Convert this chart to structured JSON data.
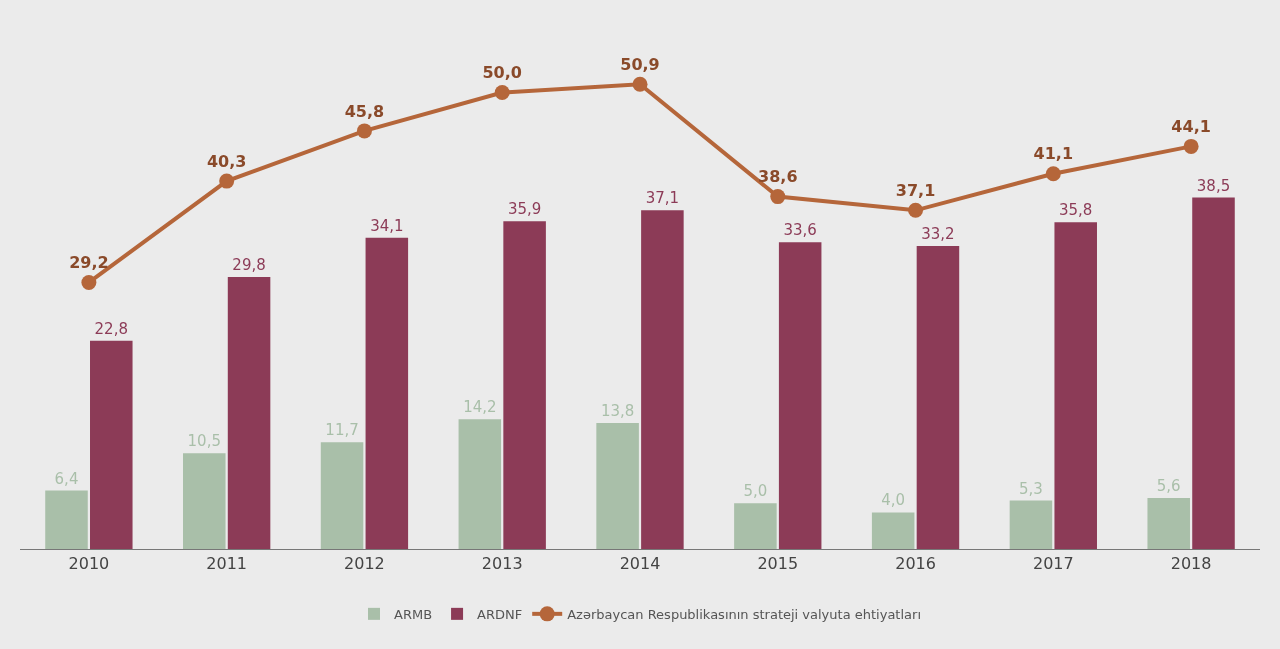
{
  "chart_data": {
    "type": "bar",
    "categories": [
      "2010",
      "2011",
      "2012",
      "2013",
      "2014",
      "2015",
      "2016",
      "2017",
      "2018"
    ],
    "series": [
      {
        "name": "ARMB",
        "color": "#a9bfa9",
        "values": [
          6.4,
          10.5,
          11.7,
          14.2,
          13.8,
          5.0,
          4.0,
          5.3,
          5.6
        ],
        "value_labels": [
          "6,4",
          "10,5",
          "11,7",
          "14,2",
          "13,8",
          "5,0",
          "4,0",
          "5,3",
          "5,6"
        ]
      },
      {
        "name": "ARDNF",
        "color": "#8c3b57",
        "values": [
          22.8,
          29.8,
          34.1,
          35.9,
          37.1,
          33.6,
          33.2,
          35.8,
          38.5
        ],
        "value_labels": [
          "22,8",
          "29,8",
          "34,1",
          "35,9",
          "37,1",
          "33,6",
          "33,2",
          "35,8",
          "38,5"
        ]
      },
      {
        "name": "Azərbaycan Respublikasının strateji valyuta ehtiyatları",
        "type": "line",
        "color": "#b5663a",
        "marker": "circle",
        "values": [
          29.2,
          40.3,
          45.8,
          50.0,
          50.9,
          38.6,
          37.1,
          41.1,
          44.1
        ],
        "value_labels": [
          "29,2",
          "40,3",
          "45,8",
          "50,0",
          "50,9",
          "38,6",
          "37,1",
          "41,1",
          "44,1"
        ]
      }
    ],
    "legend": "bottom",
    "grid": false
  }
}
